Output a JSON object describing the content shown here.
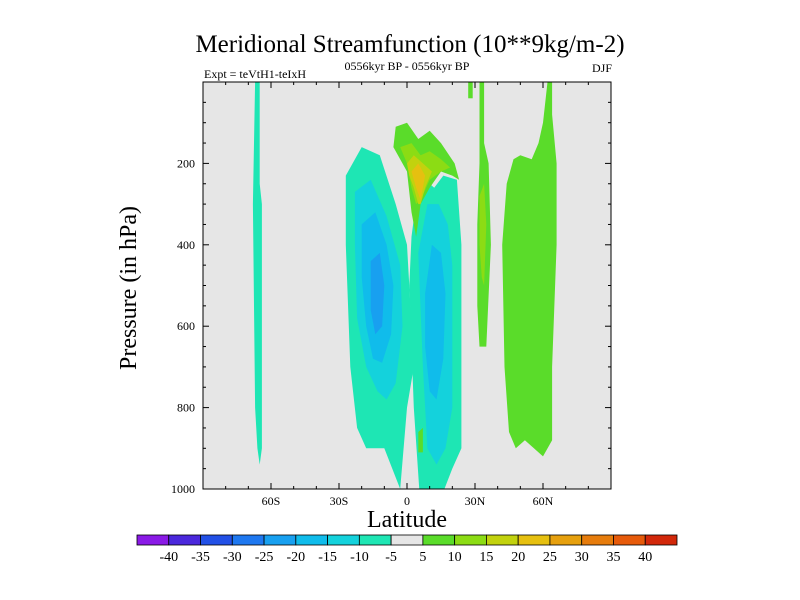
{
  "chart_data": {
    "type": "contour",
    "title": "Meridional Streamfunction (10**9kg/m-2)",
    "left_string": "Expt = teVtH1-teIxH",
    "center_string": "0556kyr BP - 0556kyr BP",
    "right_string": "DJF",
    "xlabel": "Latitude",
    "ylabel": "Pressure (in hPa)",
    "xlim": [
      -90,
      90
    ],
    "ylim": [
      1000,
      0
    ],
    "x_ticks": [
      {
        "value": -60,
        "label": "60S"
      },
      {
        "value": -30,
        "label": "30S"
      },
      {
        "value": 0,
        "label": "0"
      },
      {
        "value": 30,
        "label": "30N"
      },
      {
        "value": 60,
        "label": "60N"
      }
    ],
    "y_ticks": [
      {
        "value": 200,
        "label": "200"
      },
      {
        "value": 400,
        "label": "400"
      },
      {
        "value": 600,
        "label": "600"
      },
      {
        "value": 800,
        "label": "800"
      },
      {
        "value": 1000,
        "label": "1000"
      }
    ],
    "background_color": "#e6e6e6",
    "contour_levels": [
      -40,
      -35,
      -30,
      -25,
      -20,
      -15,
      -10,
      -5,
      5,
      10,
      15,
      20,
      25,
      30,
      35,
      40
    ],
    "colorbar_labels": [
      "-40",
      "-35",
      "-30",
      "-25",
      "-20",
      "-15",
      "-10",
      "-5",
      "5",
      "10",
      "15",
      "20",
      "25",
      "30",
      "35",
      "40"
    ],
    "colorbar_colors": [
      "#8a1ae6",
      "#4b28dc",
      "#2250e6",
      "#1e78f0",
      "#18a0f0",
      "#10bceb",
      "#14d2dc",
      "#1ee6b4",
      "#e6e6e6",
      "#5adc2a",
      "#8cdc14",
      "#c2d20e",
      "#e6c010",
      "#e6a00e",
      "#e67c0c",
      "#e65a0a",
      "#d2280a"
    ],
    "regions": [
      {
        "label": "southern polar column",
        "value_range": [
          -10,
          -5
        ],
        "color": "#1ee6b4",
        "points": [
          [
            -67,
            0
          ],
          [
            -65,
            0
          ],
          [
            -65,
            250
          ],
          [
            -64,
            300
          ],
          [
            -64,
            900
          ],
          [
            -65,
            940
          ],
          [
            -66,
            900
          ],
          [
            -67,
            800
          ],
          [
            -68,
            300
          ]
        ]
      },
      {
        "label": "southern cell outer",
        "value_range": [
          -10,
          -5
        ],
        "color": "#1ee6b4",
        "points": [
          [
            -27,
            230
          ],
          [
            -20,
            160
          ],
          [
            -12,
            180
          ],
          [
            -5,
            300
          ],
          [
            0,
            400
          ],
          [
            3,
            700
          ],
          [
            0,
            800
          ],
          [
            -3,
            1000
          ],
          [
            -10,
            900
          ],
          [
            -18,
            900
          ],
          [
            -22,
            850
          ],
          [
            -25,
            700
          ],
          [
            -27,
            400
          ]
        ]
      },
      {
        "label": "southern cell -15",
        "value_range": [
          -15,
          -10
        ],
        "color": "#14d2dc",
        "points": [
          [
            -23,
            270
          ],
          [
            -16,
            240
          ],
          [
            -9,
            330
          ],
          [
            -3,
            450
          ],
          [
            -2,
            600
          ],
          [
            -5,
            740
          ],
          [
            -9,
            780
          ],
          [
            -13,
            760
          ],
          [
            -18,
            700
          ],
          [
            -22,
            580
          ],
          [
            -23,
            400
          ]
        ]
      },
      {
        "label": "southern cell -20",
        "value_range": [
          -20,
          -15
        ],
        "color": "#10bceb",
        "points": [
          [
            -20,
            350
          ],
          [
            -14,
            320
          ],
          [
            -9,
            400
          ],
          [
            -6,
            500
          ],
          [
            -7,
            620
          ],
          [
            -11,
            690
          ],
          [
            -15,
            680
          ],
          [
            -18,
            600
          ],
          [
            -20,
            480
          ]
        ]
      },
      {
        "label": "southern core",
        "value_range": [
          -25,
          -20
        ],
        "color": "#18a0f0",
        "points": [
          [
            -16,
            440
          ],
          [
            -12,
            420
          ],
          [
            -10,
            500
          ],
          [
            -11,
            600
          ],
          [
            -14,
            620
          ],
          [
            -16,
            560
          ]
        ]
      },
      {
        "label": "central cell outer",
        "value_range": [
          -10,
          -5
        ],
        "color": "#1ee6b4",
        "points": [
          [
            2,
            380
          ],
          [
            5,
            250
          ],
          [
            8,
            240
          ],
          [
            12,
            260
          ],
          [
            16,
            230
          ],
          [
            22,
            240
          ],
          [
            24,
            400
          ],
          [
            24,
            900
          ],
          [
            20,
            950
          ],
          [
            13,
            1050
          ],
          [
            10,
            1110
          ],
          [
            6,
            1050
          ],
          [
            3,
            800
          ],
          [
            1,
            500
          ]
        ]
      },
      {
        "label": "central cell -15",
        "value_range": [
          -15,
          -10
        ],
        "color": "#14d2dc",
        "points": [
          [
            5,
            420
          ],
          [
            9,
            300
          ],
          [
            14,
            300
          ],
          [
            18,
            350
          ],
          [
            20,
            450
          ],
          [
            20,
            800
          ],
          [
            17,
            900
          ],
          [
            13,
            940
          ],
          [
            9,
            900
          ],
          [
            7,
            700
          ]
        ]
      },
      {
        "label": "central core",
        "value_range": [
          -20,
          -15
        ],
        "color": "#10bceb",
        "points": [
          [
            8,
            520
          ],
          [
            11,
            400
          ],
          [
            15,
            420
          ],
          [
            17,
            520
          ],
          [
            16,
            680
          ],
          [
            13,
            780
          ],
          [
            10,
            760
          ],
          [
            8,
            650
          ]
        ]
      },
      {
        "label": "upper positive cell",
        "value_range": [
          5,
          10
        ],
        "color": "#5adc2a",
        "points": [
          [
            -5,
            110
          ],
          [
            0,
            100
          ],
          [
            5,
            140
          ],
          [
            10,
            120
          ],
          [
            15,
            150
          ],
          [
            21,
            200
          ],
          [
            23,
            240
          ],
          [
            20,
            230
          ],
          [
            15,
            220
          ],
          [
            10,
            260
          ],
          [
            6,
            300
          ],
          [
            4,
            380
          ],
          [
            2,
            320
          ],
          [
            0,
            220
          ],
          [
            -6,
            160
          ]
        ]
      },
      {
        "label": "upper positive 10",
        "value_range": [
          10,
          15
        ],
        "color": "#8cdc14",
        "points": [
          [
            -3,
            160
          ],
          [
            2,
            150
          ],
          [
            6,
            180
          ],
          [
            10,
            170
          ],
          [
            15,
            190
          ],
          [
            19,
            210
          ],
          [
            15,
            220
          ],
          [
            10,
            240
          ],
          [
            6,
            290
          ],
          [
            4,
            300
          ],
          [
            2,
            260
          ],
          [
            0,
            200
          ]
        ]
      },
      {
        "label": "upper positive 15",
        "value_range": [
          15,
          20
        ],
        "color": "#c2d20e",
        "points": [
          [
            0,
            200
          ],
          [
            3,
            180
          ],
          [
            7,
            200
          ],
          [
            11,
            220
          ],
          [
            8,
            260
          ],
          [
            6,
            300
          ],
          [
            5,
            300
          ],
          [
            3,
            260
          ],
          [
            1,
            230
          ]
        ]
      },
      {
        "label": "upper positive core",
        "value_range": [
          20,
          25
        ],
        "color": "#e6c010",
        "points": [
          [
            2,
            220
          ],
          [
            5,
            200
          ],
          [
            8,
            230
          ],
          [
            7,
            260
          ],
          [
            6,
            290
          ],
          [
            4,
            260
          ],
          [
            3,
            240
          ]
        ]
      },
      {
        "label": "northern narrow band",
        "value_range": [
          5,
          10
        ],
        "color": "#5adc2a",
        "points": [
          [
            32,
            0
          ],
          [
            34,
            0
          ],
          [
            34,
            150
          ],
          [
            36,
            200
          ],
          [
            37,
            400
          ],
          [
            35,
            650
          ],
          [
            32,
            650
          ],
          [
            31,
            550
          ],
          [
            31,
            350
          ],
          [
            32,
            200
          ]
        ]
      },
      {
        "label": "northern narrow core",
        "value_range": [
          10,
          15
        ],
        "color": "#8cdc14",
        "points": [
          [
            32,
            280
          ],
          [
            34,
            250
          ],
          [
            35,
            350
          ],
          [
            34,
            500
          ],
          [
            33,
            480
          ],
          [
            32,
            400
          ]
        ]
      },
      {
        "label": "northern cell",
        "value_range": [
          5,
          10
        ],
        "color": "#5adc2a",
        "points": [
          [
            44,
            250
          ],
          [
            47,
            190
          ],
          [
            50,
            180
          ],
          [
            55,
            190
          ],
          [
            58,
            150
          ],
          [
            60,
            100
          ],
          [
            62,
            0
          ],
          [
            64,
            0
          ],
          [
            64,
            80
          ],
          [
            66,
            200
          ],
          [
            66,
            400
          ],
          [
            64,
            700
          ],
          [
            64,
            880
          ],
          [
            60,
            920
          ],
          [
            56,
            900
          ],
          [
            52,
            880
          ],
          [
            48,
            900
          ],
          [
            45,
            860
          ],
          [
            43,
            700
          ],
          [
            42,
            400
          ]
        ]
      },
      {
        "label": "top green flag",
        "value_range": [
          5,
          10
        ],
        "color": "#5adc2a",
        "points": [
          [
            27,
            0
          ],
          [
            29,
            0
          ],
          [
            29,
            40
          ],
          [
            27,
            40
          ]
        ]
      },
      {
        "label": "small green blob",
        "value_range": [
          5,
          10
        ],
        "color": "#5adc2a",
        "points": [
          [
            5,
            860
          ],
          [
            7,
            850
          ],
          [
            7,
            910
          ],
          [
            5,
            910
          ]
        ]
      }
    ]
  }
}
